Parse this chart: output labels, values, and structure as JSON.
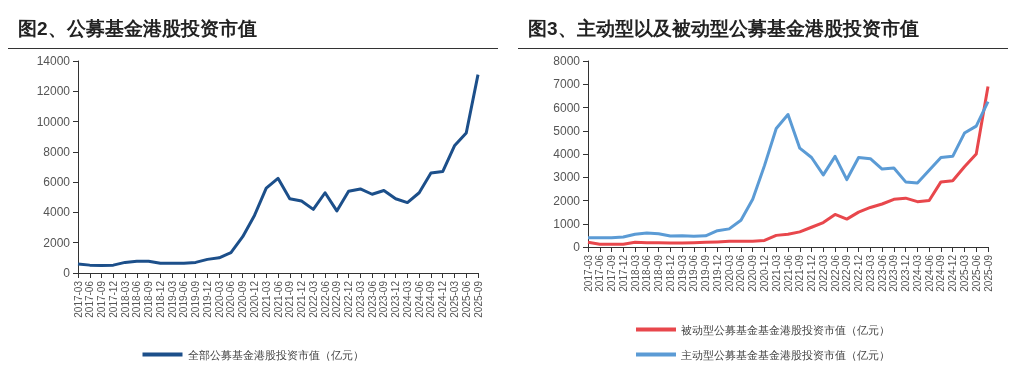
{
  "chart_data": [
    {
      "type": "line",
      "title": "图2、公募基金港股投资市值",
      "categories": [
        "2017-03",
        "2017-06",
        "2017-09",
        "2017-12",
        "2018-03",
        "2018-06",
        "2018-09",
        "2018-12",
        "2019-03",
        "2019-06",
        "2019-09",
        "2019-12",
        "2020-03",
        "2020-06",
        "2020-09",
        "2020-12",
        "2021-03",
        "2021-06",
        "2021-09",
        "2021-12",
        "2022-03",
        "2022-06",
        "2022-09",
        "2022-12",
        "2023-03",
        "2023-06",
        "2023-09",
        "2023-12",
        "2024-03",
        "2024-06",
        "2024-09",
        "2024-12",
        "2025-03",
        "2025-06",
        "2025-09"
      ],
      "series": [
        {
          "name": "全部公募基金港股投资市值（亿元）",
          "color": "#1c4f8a",
          "values": [
            600,
            520,
            500,
            520,
            700,
            780,
            780,
            650,
            650,
            650,
            700,
            900,
            1000,
            1350,
            2400,
            3800,
            5600,
            6250,
            4900,
            4750,
            4200,
            5300,
            4100,
            5400,
            5550,
            5200,
            5450,
            4900,
            4650,
            5300,
            6600,
            6700,
            8400,
            9250,
            13100
          ]
        }
      ],
      "ylim": [
        0,
        14000
      ],
      "yticks": [
        0,
        2000,
        4000,
        6000,
        8000,
        10000,
        12000,
        14000
      ],
      "grid": false,
      "legend": "bottom",
      "marker": "none"
    },
    {
      "type": "line",
      "title": "图3、主动型以及被动型公募基金港股投资市值",
      "categories": [
        "2017-03",
        "2017-06",
        "2017-09",
        "2017-12",
        "2018-03",
        "2018-06",
        "2018-09",
        "2018-12",
        "2019-03",
        "2019-06",
        "2019-09",
        "2019-12",
        "2020-03",
        "2020-06",
        "2020-09",
        "2020-12",
        "2021-03",
        "2021-06",
        "2021-09",
        "2021-12",
        "2022-03",
        "2022-06",
        "2022-09",
        "2022-12",
        "2023-03",
        "2023-06",
        "2023-09",
        "2023-12",
        "2024-03",
        "2024-06",
        "2024-09",
        "2024-12",
        "2025-03",
        "2025-06",
        "2025-09"
      ],
      "series": [
        {
          "name": "被动型公募基金基金港股投资市值（亿元）",
          "color": "#e8474c",
          "values": [
            200,
            120,
            120,
            120,
            200,
            180,
            180,
            170,
            170,
            180,
            200,
            220,
            250,
            250,
            250,
            280,
            500,
            550,
            650,
            850,
            1050,
            1400,
            1200,
            1500,
            1700,
            1850,
            2050,
            2100,
            1950,
            2000,
            2800,
            2850,
            3450,
            4000,
            6900
          ]
        },
        {
          "name": "主动型公募基金基金港股投资市值（亿元）",
          "color": "#5b9bd5",
          "values": [
            400,
            400,
            400,
            430,
            550,
            600,
            570,
            470,
            480,
            460,
            480,
            700,
            780,
            1150,
            2050,
            3500,
            5100,
            5700,
            4250,
            3850,
            3100,
            3900,
            2900,
            3850,
            3800,
            3350,
            3400,
            2800,
            2750,
            3300,
            3850,
            3900,
            4900,
            5200,
            6250
          ]
        }
      ],
      "ylim": [
        0,
        8000
      ],
      "yticks": [
        0,
        1000,
        2000,
        3000,
        4000,
        5000,
        6000,
        7000,
        8000
      ],
      "grid": false,
      "legend": "bottom",
      "marker": "none"
    }
  ]
}
